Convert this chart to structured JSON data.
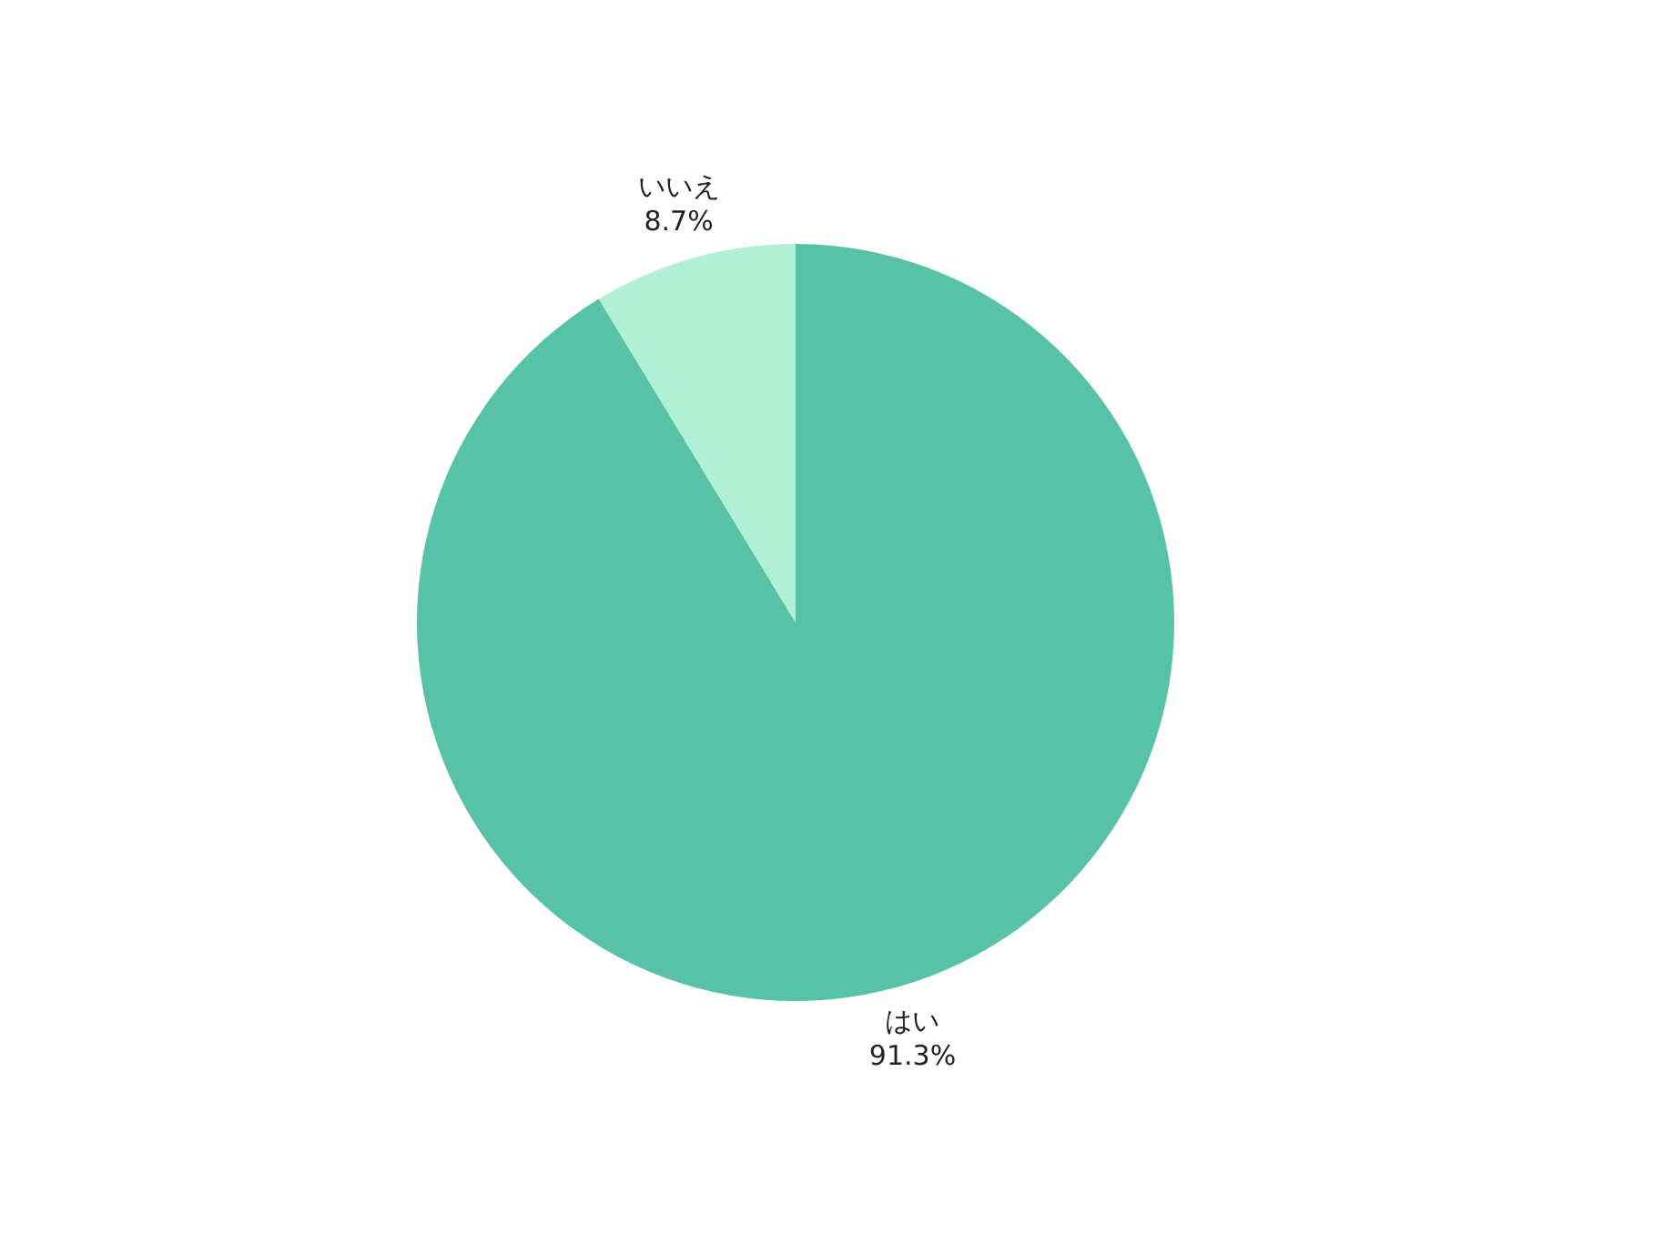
{
  "chart_data": {
    "type": "pie",
    "categories": [
      "はい",
      "いいえ"
    ],
    "values": [
      91.3,
      8.7
    ],
    "colors": [
      "#58c2a6",
      "#b2f0d6"
    ],
    "value_labels": [
      "91.3%",
      "8.7%"
    ],
    "legend": false
  }
}
